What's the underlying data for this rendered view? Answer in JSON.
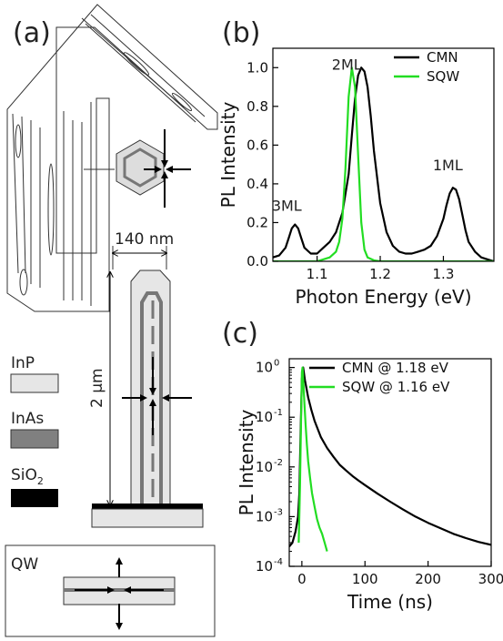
{
  "panels": {
    "a": {
      "label": "(a)",
      "dim_width": "140 nm",
      "dim_height": "2 μm",
      "legend": [
        {
          "label": "InP",
          "color": "#e6e6e6"
        },
        {
          "label": "InAs",
          "color": "#808080"
        },
        {
          "label": "SiO",
          "sub": "2",
          "color": "#000000"
        }
      ],
      "qw_label": "QW"
    },
    "b": {
      "label": "(b)"
    },
    "c": {
      "label": "(c)"
    }
  },
  "colors": {
    "cmn": "#000000",
    "sqw": "#22dd22"
  },
  "chart_data": [
    {
      "type": "line",
      "xlabel": "Photon Energy (eV)",
      "ylabel": "PL Intensity",
      "xlim": [
        1.03,
        1.38
      ],
      "ylim": [
        0.0,
        1.1
      ],
      "xticks": [
        1.1,
        1.2,
        1.3
      ],
      "xtick_labels": [
        "1.1",
        "1.2",
        "1.3"
      ],
      "yticks": [
        0.0,
        0.2,
        0.4,
        0.6,
        0.8,
        1.0
      ],
      "ytick_labels": [
        "0.0",
        "0.2",
        "0.4",
        "0.6",
        "0.8",
        "1.0"
      ],
      "legend_position": "top-right",
      "annotations": [
        {
          "text": "2ML",
          "x": 1.147,
          "y": 0.99
        },
        {
          "text": "3ML",
          "x": 1.052,
          "y": 0.26
        },
        {
          "text": "1ML",
          "x": 1.307,
          "y": 0.47
        }
      ],
      "series": [
        {
          "name": "CMN",
          "color": "#000000",
          "x": [
            1.03,
            1.04,
            1.05,
            1.055,
            1.06,
            1.065,
            1.07,
            1.075,
            1.08,
            1.09,
            1.1,
            1.11,
            1.12,
            1.13,
            1.14,
            1.15,
            1.155,
            1.16,
            1.165,
            1.17,
            1.175,
            1.18,
            1.185,
            1.19,
            1.2,
            1.21,
            1.22,
            1.23,
            1.24,
            1.25,
            1.26,
            1.27,
            1.28,
            1.29,
            1.3,
            1.305,
            1.31,
            1.315,
            1.32,
            1.325,
            1.33,
            1.335,
            1.34,
            1.35,
            1.36,
            1.37,
            1.38
          ],
          "y": [
            0.02,
            0.03,
            0.07,
            0.12,
            0.17,
            0.19,
            0.17,
            0.12,
            0.07,
            0.04,
            0.04,
            0.07,
            0.1,
            0.15,
            0.25,
            0.45,
            0.65,
            0.84,
            0.96,
            1.0,
            0.98,
            0.9,
            0.75,
            0.57,
            0.3,
            0.15,
            0.08,
            0.05,
            0.04,
            0.04,
            0.05,
            0.06,
            0.08,
            0.13,
            0.22,
            0.29,
            0.35,
            0.38,
            0.37,
            0.32,
            0.24,
            0.16,
            0.1,
            0.05,
            0.02,
            0.01,
            0.0
          ]
        },
        {
          "name": "SQW",
          "color": "#22dd22",
          "x": [
            1.03,
            1.1,
            1.12,
            1.13,
            1.135,
            1.14,
            1.145,
            1.15,
            1.155,
            1.16,
            1.165,
            1.17,
            1.175,
            1.18,
            1.19,
            1.2,
            1.25,
            1.38
          ],
          "y": [
            0.0,
            0.0,
            0.02,
            0.05,
            0.1,
            0.22,
            0.48,
            0.85,
            1.0,
            0.9,
            0.55,
            0.2,
            0.06,
            0.02,
            0.005,
            0.0,
            0.0,
            0.0
          ]
        }
      ]
    },
    {
      "type": "line",
      "xlabel": "Time (ns)",
      "ylabel": "PL Intensity",
      "xlim": [
        -20,
        300
      ],
      "ylim": [
        0.0001,
        1.5
      ],
      "yscale": "log",
      "xticks": [
        0,
        100,
        200,
        300
      ],
      "xtick_labels": [
        "0",
        "100",
        "200",
        "300"
      ],
      "yticks": [
        0.0001,
        0.001,
        0.01,
        0.1,
        1
      ],
      "ytick_labels": [
        {
          "base": "10",
          "exp": "-4"
        },
        {
          "base": "10",
          "exp": "-3"
        },
        {
          "base": "10",
          "exp": "-2"
        },
        {
          "base": "10",
          "exp": "-1"
        },
        {
          "base": "10",
          "exp": "0"
        }
      ],
      "legend_position": "top-right",
      "series": [
        {
          "name": "CMN @ 1.18 eV",
          "color": "#000000",
          "x": [
            -20,
            -15,
            -10,
            -6,
            -4,
            -2,
            0,
            2,
            5,
            10,
            15,
            20,
            30,
            40,
            50,
            60,
            70,
            80,
            90,
            100,
            120,
            140,
            160,
            180,
            200,
            220,
            240,
            260,
            280,
            300
          ],
          "y": [
            0.00025,
            0.0003,
            0.0005,
            0.001,
            0.003,
            0.05,
            0.6,
            1.0,
            0.55,
            0.25,
            0.14,
            0.085,
            0.04,
            0.024,
            0.016,
            0.011,
            0.0085,
            0.0066,
            0.0053,
            0.0043,
            0.0029,
            0.002,
            0.0014,
            0.001,
            0.00075,
            0.00058,
            0.00045,
            0.00037,
            0.00031,
            0.00027
          ]
        },
        {
          "name": "SQW @ 1.16 eV",
          "color": "#22dd22",
          "x": [
            -5,
            -3,
            -1,
            0,
            1,
            2,
            4,
            6,
            8,
            10,
            13,
            16,
            20,
            24,
            28,
            32,
            36,
            40
          ],
          "y": [
            0.0003,
            0.004,
            0.15,
            0.8,
            1.0,
            0.6,
            0.2,
            0.07,
            0.028,
            0.013,
            0.006,
            0.003,
            0.0016,
            0.0009,
            0.0006,
            0.00045,
            0.0003,
            0.0002
          ]
        }
      ]
    }
  ]
}
